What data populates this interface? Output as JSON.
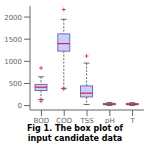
{
  "chart_data": {
    "type": "box",
    "title": "Fig 1. The box plot of\ninput candidate data",
    "categories": [
      "BOD",
      "COD",
      "TSS",
      "pH",
      "T"
    ],
    "boxes": [
      {
        "q1": 340,
        "median": 415,
        "q3": 480,
        "whislo": 140,
        "whishi": 650,
        "fliers": [
          850,
          100
        ]
      },
      {
        "q1": 1230,
        "median": 1400,
        "q3": 1620,
        "whislo": 390,
        "whishi": 1950,
        "fliers": [
          2170,
          375
        ]
      },
      {
        "q1": 195,
        "median": 280,
        "q3": 445,
        "whislo": 25,
        "whishi": 960,
        "fliers": [
          1120
        ]
      },
      {
        "q1": 18,
        "median": 30,
        "q3": 50,
        "whislo": 3,
        "whishi": 70,
        "fliers": []
      },
      {
        "q1": 18,
        "median": 28,
        "q3": 45,
        "whislo": 3,
        "whishi": 65,
        "fliers": []
      }
    ],
    "color": "#ccccff",
    "ylim": [
      -100,
      2250
    ],
    "yticks": [
      0,
      500,
      1000,
      1500,
      2000
    ]
  }
}
